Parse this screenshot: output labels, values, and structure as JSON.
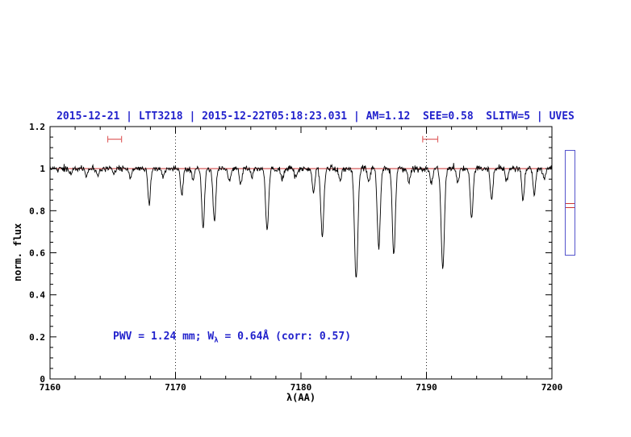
{
  "header": {
    "title": "2015-12-21 | LTT3218 | 2015-12-22T05:18:23.031 | AM=1.12  SEE=0.58  SLITW=5 | UVES"
  },
  "annotation": {
    "part1": "PWV = 1.24 mm; W",
    "sub": "λ",
    "part2": " = 0.64Å (corr: 0.57)"
  },
  "colors": {
    "accent_blue": "#2222cc",
    "marker_red": "#e06666",
    "continuum_red": "#cc3333",
    "frame_black": "#000000",
    "panel_blue": "#5555cc"
  },
  "side_panel": {
    "indicator_fractions": [
      0.5,
      0.545
    ]
  },
  "chart_data": {
    "type": "line",
    "title": "2015-12-21 | LTT3218 | 2015-12-22T05:18:23.031 | AM=1.12  SEE=0.58  SLITW=5 | UVES",
    "xlabel": "λ(AA)",
    "ylabel": "norm. flux",
    "xlim": [
      7160,
      7200
    ],
    "ylim": [
      0,
      1.2
    ],
    "x_ticks": {
      "values": [
        7160,
        7170,
        7180,
        7190,
        7200
      ],
      "labels": [
        "7160",
        "7170",
        "7180",
        "7190",
        "7200"
      ]
    },
    "x_minor_step": 2,
    "y_ticks": {
      "values": [
        0,
        0.2,
        0.4,
        0.6,
        0.8,
        1.0,
        1.2
      ],
      "labels": [
        "0",
        "0.2",
        "0.4",
        "0.6",
        "0.8",
        "1",
        "1.2"
      ]
    },
    "y_minor_step": 0.05,
    "grid": false,
    "legend": "none",
    "continuum_level": 1.0,
    "noise_sigma": 0.007,
    "dotted_guides_x": [
      7170,
      7190
    ],
    "top_markers": [
      {
        "x1": 7164.6,
        "x2": 7165.7,
        "y": 1.14
      },
      {
        "x1": 7189.7,
        "x2": 7190.9,
        "y": 1.14
      }
    ],
    "absorption_lines": [
      [
        7161.6,
        0.025,
        0.1
      ],
      [
        7162.9,
        0.035,
        0.1
      ],
      [
        7163.8,
        0.03,
        0.1
      ],
      [
        7165.1,
        0.025,
        0.1
      ],
      [
        7166.4,
        0.04,
        0.1
      ],
      [
        7167.9,
        0.17,
        0.1
      ],
      [
        7169.0,
        0.035,
        0.1
      ],
      [
        7170.5,
        0.13,
        0.1
      ],
      [
        7171.4,
        0.05,
        0.1
      ],
      [
        7172.2,
        0.28,
        0.11
      ],
      [
        7173.1,
        0.25,
        0.11
      ],
      [
        7174.3,
        0.06,
        0.1
      ],
      [
        7175.2,
        0.07,
        0.1
      ],
      [
        7176.1,
        0.04,
        0.1
      ],
      [
        7177.3,
        0.29,
        0.12
      ],
      [
        7178.5,
        0.05,
        0.1
      ],
      [
        7179.6,
        0.04,
        0.1
      ],
      [
        7181.0,
        0.12,
        0.1
      ],
      [
        7181.7,
        0.33,
        0.12
      ],
      [
        7183.1,
        0.06,
        0.1
      ],
      [
        7184.4,
        0.53,
        0.13
      ],
      [
        7185.4,
        0.07,
        0.1
      ],
      [
        7186.2,
        0.38,
        0.12
      ],
      [
        7187.4,
        0.41,
        0.12
      ],
      [
        7188.6,
        0.06,
        0.1
      ],
      [
        7190.4,
        0.07,
        0.1
      ],
      [
        7191.3,
        0.47,
        0.13
      ],
      [
        7192.5,
        0.07,
        0.1
      ],
      [
        7193.6,
        0.24,
        0.11
      ],
      [
        7195.2,
        0.15,
        0.1
      ],
      [
        7196.4,
        0.06,
        0.1
      ],
      [
        7197.7,
        0.16,
        0.1
      ],
      [
        7198.6,
        0.12,
        0.1
      ],
      [
        7199.4,
        0.05,
        0.1
      ]
    ]
  }
}
